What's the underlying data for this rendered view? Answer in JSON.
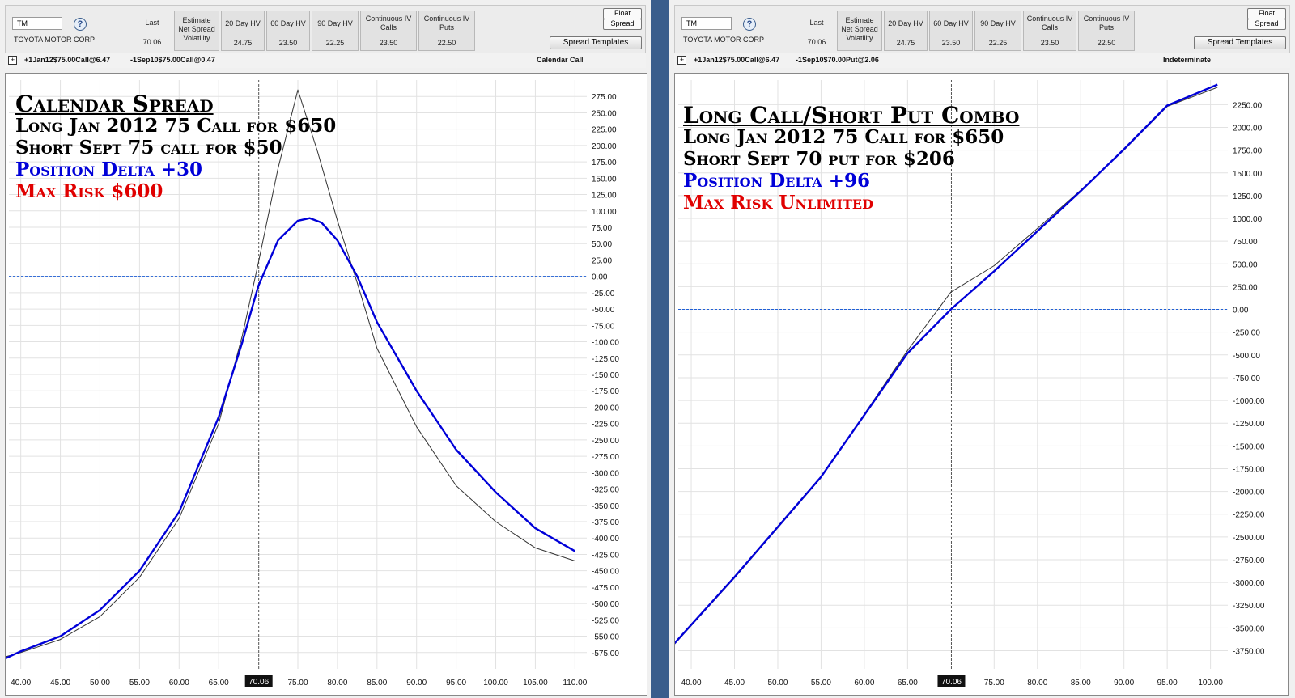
{
  "left": {
    "symbol": "TM",
    "company": "TOYOTA MOTOR CORP",
    "stats": [
      {
        "label": "Last",
        "value": "70.06"
      },
      {
        "label": "Estimate Net Spread Volatility",
        "value": ""
      },
      {
        "label": "20 Day HV",
        "value": "24.75"
      },
      {
        "label": "60 Day HV",
        "value": "23.50"
      },
      {
        "label": "90 Day HV",
        "value": "22.25"
      },
      {
        "label": "Continuous IV Calls",
        "value": "23.50"
      },
      {
        "label": "Continuous IV Puts",
        "value": "22.50"
      }
    ],
    "float_label": "Float",
    "spread_label": "Spread",
    "templates_label": "Spread Templates",
    "leg1": "+1Jan12$75.00Call@6.47",
    "leg2": "-1Sep10$75.00Call@0.47",
    "strategy": "Calendar Call",
    "overlay": {
      "title": "Calendar Spread",
      "line1": "Long Jan 2012 75 Call for $650",
      "line2": "Short Sept 75 call for $50",
      "line3": "Position Delta +30",
      "line4": "Max Risk $600"
    },
    "chart_data": {
      "type": "line",
      "current_price_label": "70.06",
      "current_price": 70.06,
      "x_ticks": [
        "40.00",
        "45.00",
        "50.00",
        "55.00",
        "60.00",
        "65.00",
        "75.00",
        "80.00",
        "85.00",
        "90.00",
        "95.00",
        "100.00",
        "105.00",
        "110.00"
      ],
      "y_ticks": [
        "275.00",
        "250.00",
        "225.00",
        "200.00",
        "175.00",
        "150.00",
        "125.00",
        "100.00",
        "75.00",
        "50.00",
        "25.00",
        "0.00",
        "-25.00",
        "-50.00",
        "-75.00",
        "-100.00",
        "-125.00",
        "-150.00",
        "-175.00",
        "-200.00",
        "-225.00",
        "-250.00",
        "-275.00",
        "-300.00",
        "-325.00",
        "-350.00",
        "-375.00",
        "-400.00",
        "-425.00",
        "-450.00",
        "-475.00",
        "-500.00",
        "-525.00",
        "-550.00",
        "-575.00"
      ],
      "xlim": [
        38.5,
        111.5
      ],
      "ylim": [
        -600,
        300
      ],
      "colors": {
        "today": "#0000d8",
        "expiration": "#333333",
        "zero_line": "#1f5fd6"
      },
      "series": [
        {
          "key": "expiration",
          "x": [
            37,
            40,
            45,
            50,
            55,
            60,
            65,
            68,
            70,
            72.5,
            75,
            77.5,
            80,
            82.5,
            85,
            90,
            95,
            100,
            105,
            110
          ],
          "y": [
            -585,
            -575,
            -555,
            -520,
            -460,
            -370,
            -225,
            -90,
            20,
            165,
            285,
            190,
            85,
            -10,
            -110,
            -230,
            -320,
            -375,
            -415,
            -435
          ]
        },
        {
          "key": "today",
          "x": [
            37,
            40,
            45,
            50,
            55,
            60,
            65,
            68,
            70,
            72.5,
            75,
            76.5,
            78,
            80,
            82.5,
            85,
            90,
            95,
            100,
            105,
            110
          ],
          "y": [
            -590,
            -573,
            -550,
            -510,
            -450,
            -360,
            -215,
            -100,
            -15,
            55,
            85,
            89,
            82,
            55,
            0,
            -70,
            -175,
            -265,
            -330,
            -385,
            -420
          ]
        }
      ]
    }
  },
  "right": {
    "symbol": "TM",
    "company": "TOYOTA MOTOR CORP",
    "stats": [
      {
        "label": "Last",
        "value": "70.06"
      },
      {
        "label": "Estimate Net Spread Volatility",
        "value": ""
      },
      {
        "label": "20 Day HV",
        "value": "24.75"
      },
      {
        "label": "60 Day HV",
        "value": "23.50"
      },
      {
        "label": "90 Day HV",
        "value": "22.25"
      },
      {
        "label": "Continuous IV Calls",
        "value": "23.50"
      },
      {
        "label": "Continuous IV Puts",
        "value": "22.50"
      }
    ],
    "float_label": "Float",
    "spread_label": "Spread",
    "templates_label": "Spread Templates",
    "leg1": "+1Jan12$75.00Call@6.47",
    "leg2": "-1Sep10$70.00Put@2.06",
    "strategy": "Indeterminate",
    "overlay": {
      "title": "Long Call/Short Put Combo",
      "line1": "Long Jan 2012 75 Call for $650",
      "line2": "Short Sept 70 put for $206",
      "line3": "Position Delta +96",
      "line4": "Max Risk Unlimited"
    },
    "chart_data": {
      "type": "line",
      "current_price_label": "70.06",
      "current_price": 70.06,
      "x_ticks": [
        "40.00",
        "45.00",
        "50.00",
        "55.00",
        "60.00",
        "65.00",
        "75.00",
        "80.00",
        "85.00",
        "90.00",
        "95.00",
        "100.00"
      ],
      "y_ticks": [
        "2250.00",
        "2000.00",
        "1750.00",
        "1500.00",
        "1250.00",
        "1000.00",
        "750.00",
        "500.00",
        "250.00",
        "0.00",
        "-250.00",
        "-500.00",
        "-750.00",
        "-1000.00",
        "-1250.00",
        "-1500.00",
        "-1750.00",
        "-2000.00",
        "-2250.00",
        "-2500.00",
        "-2750.00",
        "-3000.00",
        "-3250.00",
        "-3500.00",
        "-3750.00"
      ],
      "xlim": [
        38.5,
        102
      ],
      "ylim": [
        -3950,
        2520
      ],
      "colors": {
        "today": "#0000d8",
        "expiration": "#333333",
        "zero_line": "#1f5fd6"
      },
      "series": [
        {
          "key": "expiration",
          "x": [
            37,
            45,
            55,
            65,
            70,
            75,
            80,
            85,
            90,
            95,
            100.8
          ],
          "y": [
            -3790,
            -2950,
            -1850,
            -450,
            190,
            480,
            890,
            1310,
            1750,
            2230,
            2440
          ]
        },
        {
          "key": "today",
          "x": [
            37,
            45,
            55,
            65,
            70,
            72.5,
            75,
            80,
            85,
            90,
            95,
            100.8
          ],
          "y": [
            -3780,
            -2940,
            -1840,
            -480,
            0,
            210,
            420,
            860,
            1300,
            1760,
            2240,
            2470
          ]
        }
      ]
    }
  }
}
